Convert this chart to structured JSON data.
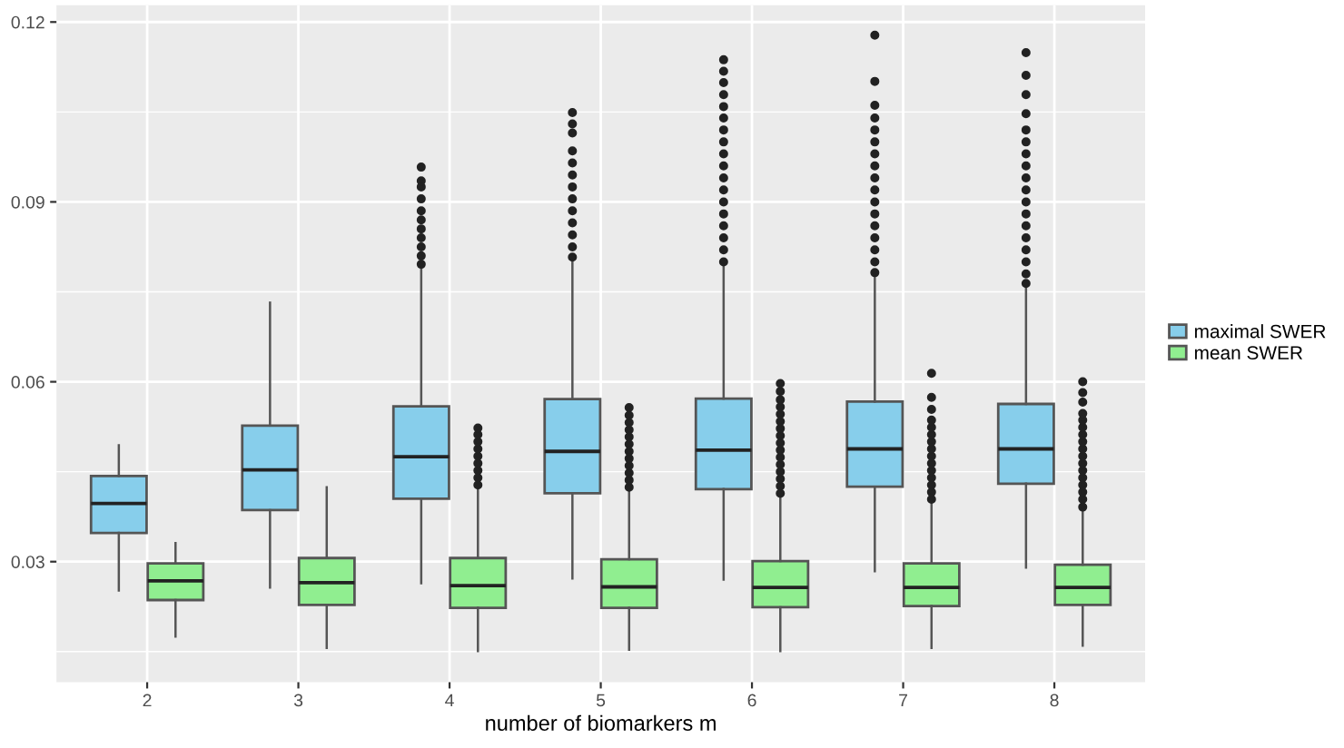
{
  "chart_data": {
    "type": "box",
    "xlabel": "number of biomarkers m",
    "categories": [
      "2",
      "3",
      "4",
      "5",
      "6",
      "7",
      "8"
    ],
    "ylim": [
      0.0099,
      0.1228
    ],
    "yticks": [
      0.03,
      0.06,
      0.09,
      0.12
    ],
    "grid": true,
    "legend": "right",
    "series": [
      {
        "name": "maximal SWER",
        "color": "#87ceeb",
        "boxes": [
          {
            "low": 0.0252,
            "q1": 0.0348,
            "median": 0.0397,
            "q3": 0.0443,
            "high": 0.0494
          },
          {
            "low": 0.0257,
            "q1": 0.0386,
            "median": 0.0453,
            "q3": 0.0527,
            "high": 0.0732
          },
          {
            "low": 0.0264,
            "q1": 0.0405,
            "median": 0.0475,
            "q3": 0.0559,
            "high": 0.0792,
            "outliers": [
              0.0796,
              0.081,
              0.0825,
              0.084,
              0.0855,
              0.087,
              0.0885,
              0.0905,
              0.0925,
              0.0935,
              0.0958
            ]
          },
          {
            "low": 0.0272,
            "q1": 0.0414,
            "median": 0.0484,
            "q3": 0.0571,
            "high": 0.0805,
            "outliers": [
              0.0808,
              0.0825,
              0.0845,
              0.0865,
              0.0885,
              0.0905,
              0.0925,
              0.0945,
              0.0965,
              0.0985,
              0.1015,
              0.103,
              0.1049
            ]
          },
          {
            "low": 0.027,
            "q1": 0.0421,
            "median": 0.0486,
            "q3": 0.0572,
            "high": 0.0795,
            "outliers": [
              0.08,
              0.082,
              0.084,
              0.086,
              0.088,
              0.09,
              0.092,
              0.094,
              0.096,
              0.098,
              0.1,
              0.102,
              0.104,
              0.1059,
              0.1079,
              0.1099,
              0.1118,
              0.1137
            ]
          },
          {
            "low": 0.0284,
            "q1": 0.0425,
            "median": 0.0488,
            "q3": 0.0567,
            "high": 0.0778,
            "outliers": [
              0.0782,
              0.08,
              0.082,
              0.084,
              0.086,
              0.088,
              0.09,
              0.092,
              0.094,
              0.096,
              0.098,
              0.1,
              0.102,
              0.104,
              0.1061,
              0.1101,
              0.1178
            ]
          },
          {
            "low": 0.029,
            "q1": 0.043,
            "median": 0.0488,
            "q3": 0.0563,
            "high": 0.076,
            "outliers": [
              0.0764,
              0.078,
              0.08,
              0.082,
              0.084,
              0.086,
              0.088,
              0.09,
              0.092,
              0.094,
              0.096,
              0.098,
              0.1,
              0.102,
              0.1047,
              0.1079,
              0.1111,
              0.1149
            ]
          }
        ]
      },
      {
        "name": "mean SWER",
        "color": "#90ee90",
        "boxes": [
          {
            "low": 0.0175,
            "q1": 0.0236,
            "median": 0.0268,
            "q3": 0.0297,
            "high": 0.0331
          },
          {
            "low": 0.0156,
            "q1": 0.0228,
            "median": 0.0265,
            "q3": 0.0306,
            "high": 0.0424
          },
          {
            "low": 0.0151,
            "q1": 0.0223,
            "median": 0.026,
            "q3": 0.0306,
            "high": 0.0426,
            "outliers": [
              0.0428,
              0.044,
              0.0452,
              0.0464,
              0.0476,
              0.0488,
              0.05,
              0.0512,
              0.0523
            ]
          },
          {
            "low": 0.0153,
            "q1": 0.0223,
            "median": 0.0258,
            "q3": 0.0304,
            "high": 0.0422,
            "outliers": [
              0.0424,
              0.0436,
              0.0448,
              0.046,
              0.0472,
              0.0484,
              0.0496,
              0.0508,
              0.052,
              0.0532,
              0.0544,
              0.0557
            ]
          },
          {
            "low": 0.0151,
            "q1": 0.0224,
            "median": 0.0257,
            "q3": 0.0301,
            "high": 0.0412,
            "outliers": [
              0.0414,
              0.0426,
              0.0438,
              0.045,
              0.0462,
              0.0474,
              0.0486,
              0.0498,
              0.051,
              0.0522,
              0.0534,
              0.0546,
              0.0558,
              0.057,
              0.0584,
              0.0597
            ]
          },
          {
            "low": 0.0156,
            "q1": 0.0226,
            "median": 0.0257,
            "q3": 0.0297,
            "high": 0.0402,
            "outliers": [
              0.0404,
              0.0416,
              0.0428,
              0.044,
              0.0452,
              0.0464,
              0.0476,
              0.0488,
              0.05,
              0.0512,
              0.0524,
              0.0536,
              0.0554,
              0.0574,
              0.0614
            ]
          },
          {
            "low": 0.016,
            "q1": 0.0228,
            "median": 0.0257,
            "q3": 0.0295,
            "high": 0.0389,
            "outliers": [
              0.0391,
              0.0404,
              0.0416,
              0.0428,
              0.044,
              0.0452,
              0.0464,
              0.0476,
              0.0488,
              0.05,
              0.0512,
              0.0524,
              0.0536,
              0.0547,
              0.0566,
              0.0582,
              0.06
            ]
          }
        ]
      }
    ]
  }
}
